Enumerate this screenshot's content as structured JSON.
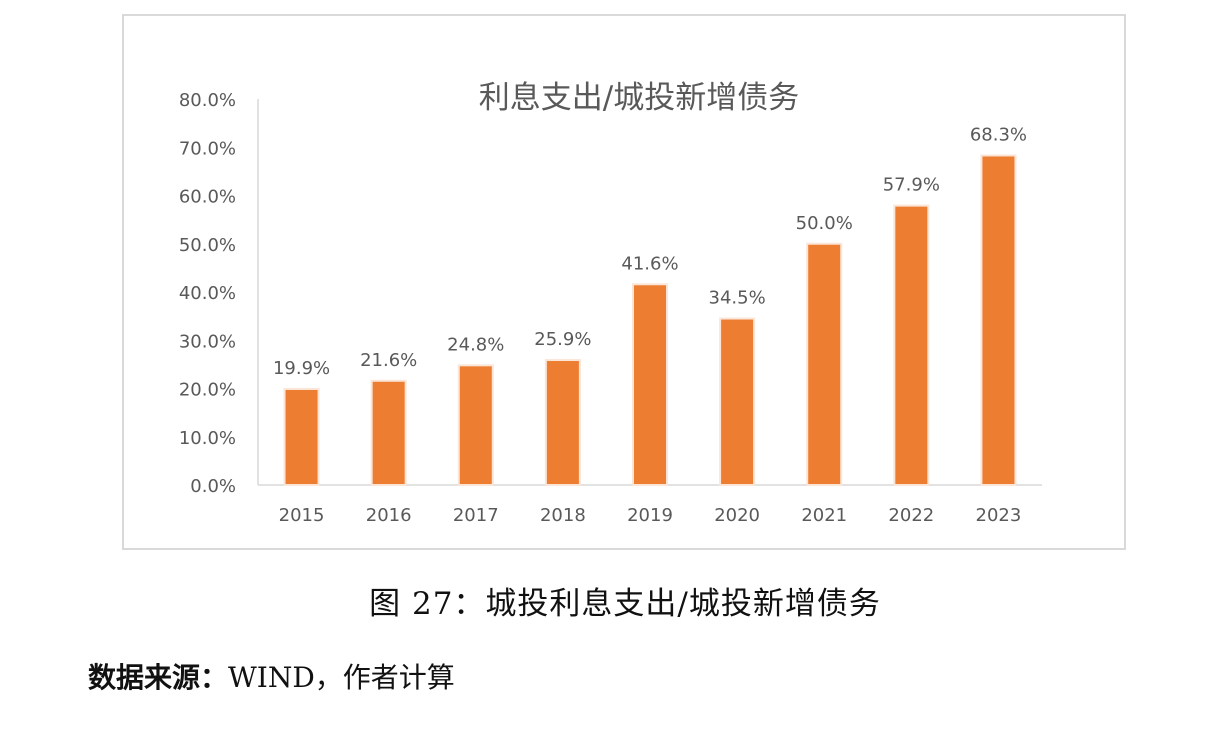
{
  "chart_data": {
    "type": "bar",
    "title": "利息支出/城投新增债务",
    "categories": [
      "2015",
      "2016",
      "2017",
      "2018",
      "2019",
      "2020",
      "2021",
      "2022",
      "2023"
    ],
    "values": [
      19.9,
      21.6,
      24.8,
      25.9,
      41.6,
      34.5,
      50.0,
      57.9,
      68.3
    ],
    "data_labels": [
      "19.9%",
      "21.6%",
      "24.8%",
      "25.9%",
      "41.6%",
      "34.5%",
      "50.0%",
      "57.9%",
      "68.3%"
    ],
    "y_ticks": [
      "0.0%",
      "10.0%",
      "20.0%",
      "30.0%",
      "40.0%",
      "50.0%",
      "60.0%",
      "70.0%",
      "80.0%"
    ],
    "ylim": [
      0,
      80
    ],
    "grid": false,
    "legend": "none",
    "colors": {
      "bar": "#ed7d31",
      "bar_outline": "#fbe5d6",
      "text": "#595959",
      "title": "#595959",
      "axis": "#d9d9d9"
    }
  },
  "caption": "图 27：城投利息支出/城投新增债务",
  "source": {
    "label": "数据来源：",
    "text": "WIND，作者计算"
  }
}
